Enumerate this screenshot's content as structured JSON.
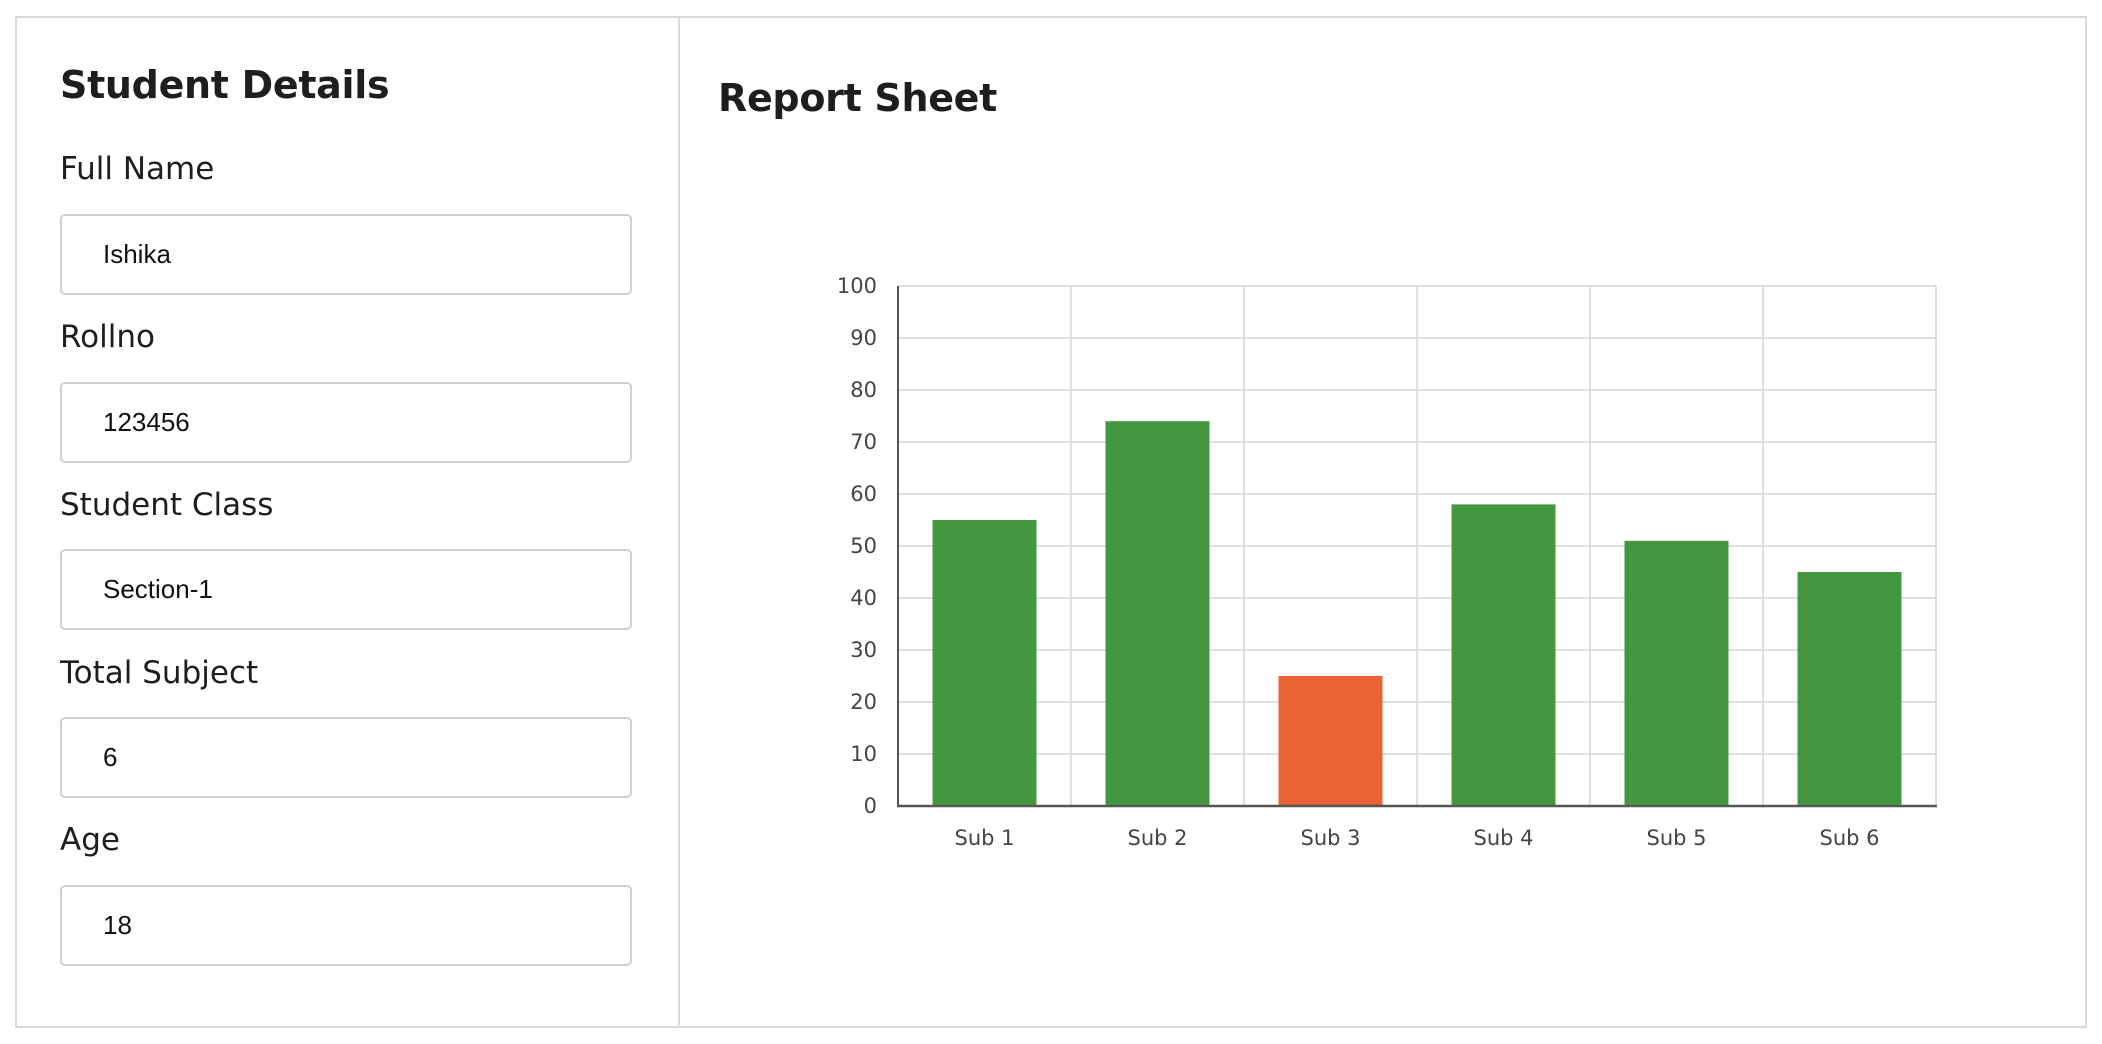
{
  "student_details": {
    "title": "Student Details",
    "fields": [
      {
        "label": "Full Name",
        "value": "Ishika"
      },
      {
        "label": "Rollno",
        "value": "123456"
      },
      {
        "label": "Student Class",
        "value": "Section-1"
      },
      {
        "label": "Total Subject",
        "value": "6"
      },
      {
        "label": "Age",
        "value": "18"
      }
    ]
  },
  "report": {
    "title": "Report Sheet"
  },
  "chart_data": {
    "type": "bar",
    "title": "",
    "xlabel": "",
    "ylabel": "",
    "categories": [
      "Sub 1",
      "Sub 2",
      "Sub 3",
      "Sub 4",
      "Sub 5",
      "Sub 6"
    ],
    "values": [
      55,
      74,
      25,
      58,
      51,
      45
    ],
    "bar_colors": [
      "#43983f",
      "#43983f",
      "#ea6334",
      "#43983f",
      "#43983f",
      "#43983f"
    ],
    "ylim": [
      0,
      100
    ],
    "yticks": [
      0,
      10,
      20,
      30,
      40,
      50,
      60,
      70,
      80,
      90,
      100
    ],
    "grid": true,
    "legend": "none"
  }
}
